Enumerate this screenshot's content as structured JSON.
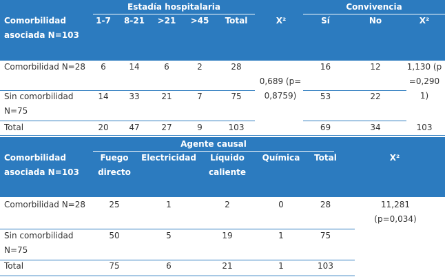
{
  "table1": {
    "group_headers": [
      "Estadía hospitalaria",
      "Convivencia"
    ],
    "header": [
      "Comorbilidad asociada N=103",
      "1-7",
      "8-21",
      ">21",
      ">45",
      "Total",
      "X²",
      "Sí",
      "No",
      "X²"
    ],
    "rows": [
      [
        "Comorbilidad N=28",
        6,
        14,
        6,
        2,
        28,
        16,
        12
      ],
      [
        "Sin comorbilidad N=75",
        14,
        33,
        21,
        7,
        75,
        53,
        22
      ],
      [
        "Total",
        20,
        47,
        27,
        9,
        103,
        69,
        34,
        103
      ]
    ],
    "x2_estadia": "0,689 (p=0,8759)",
    "x2_convivencia": "1,130 (p=0,2901)"
  },
  "table2": {
    "group_header": "Agente causal",
    "header": [
      "Comorbilidad asociada N=103",
      "Fuego directo",
      "Electricidad",
      "Líquido caliente",
      "Química",
      "Total",
      "X²"
    ],
    "rows": [
      [
        "Comorbilidad N=28",
        25,
        1,
        2,
        0,
        28
      ],
      [
        "Sin comorbilidad N=75",
        50,
        5,
        19,
        1,
        75
      ],
      [
        "Total",
        75,
        6,
        21,
        1,
        103
      ]
    ],
    "x2": "11,281 (p=0,034)"
  }
}
